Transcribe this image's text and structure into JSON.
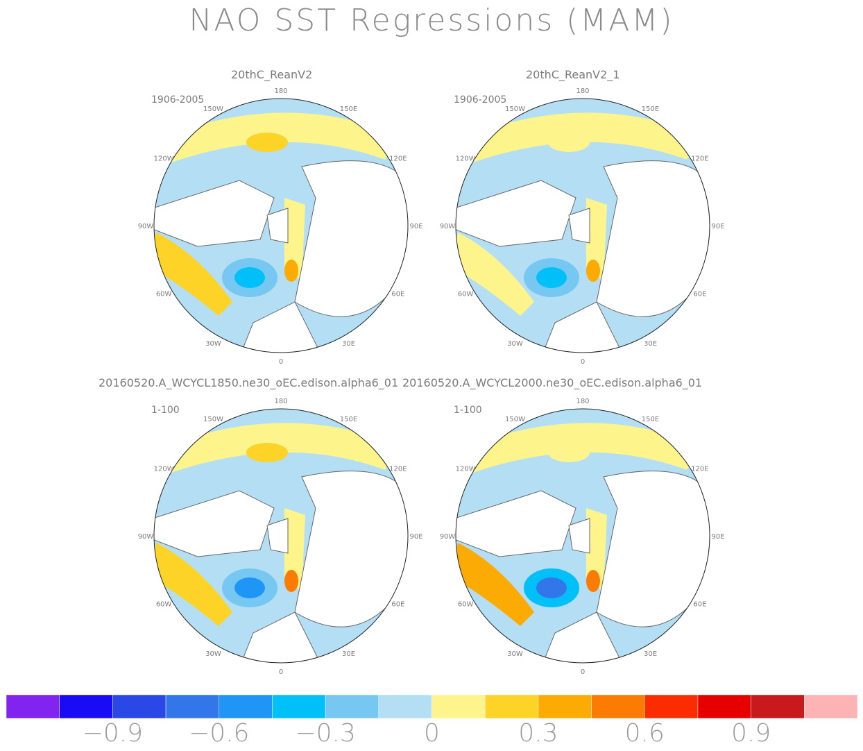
{
  "title": "NAO SST Regressions (MAM)",
  "panels": [
    {
      "title": "20thC_ReanV2",
      "period": "1906-2005"
    },
    {
      "title": "20thC_ReanV2_1",
      "period": "1906-2005"
    },
    {
      "title": "20160520.A_WCYCL1850.ne30_oEC.edison.alpha6_01",
      "period": "1-100"
    },
    {
      "title": "20160520.A_WCYCL2000.ne30_oEC.edison.alpha6_01",
      "period": "1-100"
    }
  ],
  "longitude_labels": [
    "180",
    "150E",
    "120E",
    "90E",
    "60E",
    "30E",
    "0",
    "30W",
    "60W",
    "90W",
    "120W",
    "150W"
  ],
  "chart_data": {
    "type": "heatmap",
    "projection": "north-polar-stereographic",
    "title": "NAO SST Regressions (MAM)",
    "colorbar": {
      "colors": [
        "#8224f0",
        "#1a0bf5",
        "#2a48e6",
        "#3376ea",
        "#1f95f5",
        "#00c0f7",
        "#76c8f2",
        "#b3def4",
        "#fdf58c",
        "#fdd327",
        "#fbab03",
        "#fb7b03",
        "#fb2d00",
        "#e60000",
        "#c8191d",
        "#fdb3b3"
      ],
      "tick_labels": [
        "−0.9",
        "−0.6",
        "−0.3",
        "0",
        "0.3",
        "0.6",
        "0.9"
      ],
      "tick_values": [
        -0.9,
        -0.6,
        -0.3,
        0,
        0.3,
        0.6,
        0.9
      ]
    },
    "panels": [
      {
        "name": "20thC_ReanV2",
        "period": "1906-2005",
        "features": [
          {
            "region": "subpolar North Atlantic",
            "value": -0.35
          },
          {
            "region": "western subtropical North Atlantic",
            "value": 0.15
          },
          {
            "region": "North Pacific (central)",
            "value": 0.2
          },
          {
            "region": "Barents Sea / Norwegian coast",
            "value": 0.3
          }
        ]
      },
      {
        "name": "20thC_ReanV2_1",
        "period": "1906-2005",
        "features": [
          {
            "region": "subpolar North Atlantic",
            "value": -0.4
          },
          {
            "region": "western subtropical North Atlantic",
            "value": 0.1
          },
          {
            "region": "North Pacific (central)",
            "value": 0.05
          },
          {
            "region": "Barents Sea / Norwegian coast",
            "value": 0.3
          }
        ]
      },
      {
        "name": "20160520.A_WCYCL1850.ne30_oEC.edison.alpha6_01",
        "period": "1-100",
        "features": [
          {
            "region": "subpolar North Atlantic",
            "value": -0.5
          },
          {
            "region": "western subtropical North Atlantic",
            "value": 0.25
          },
          {
            "region": "North Pacific (central)",
            "value": 0.2
          },
          {
            "region": "Barents Sea / Norwegian coast",
            "value": 0.45
          }
        ]
      },
      {
        "name": "20160520.A_WCYCL2000.ne30_oEC.edison.alpha6_01",
        "period": "1-100",
        "features": [
          {
            "region": "subpolar North Atlantic",
            "value": -0.6
          },
          {
            "region": "western subtropical North Atlantic",
            "value": 0.3
          },
          {
            "region": "North Pacific (central)",
            "value": 0.1
          },
          {
            "region": "Barents Sea / Norwegian coast",
            "value": 0.45
          }
        ]
      }
    ]
  }
}
